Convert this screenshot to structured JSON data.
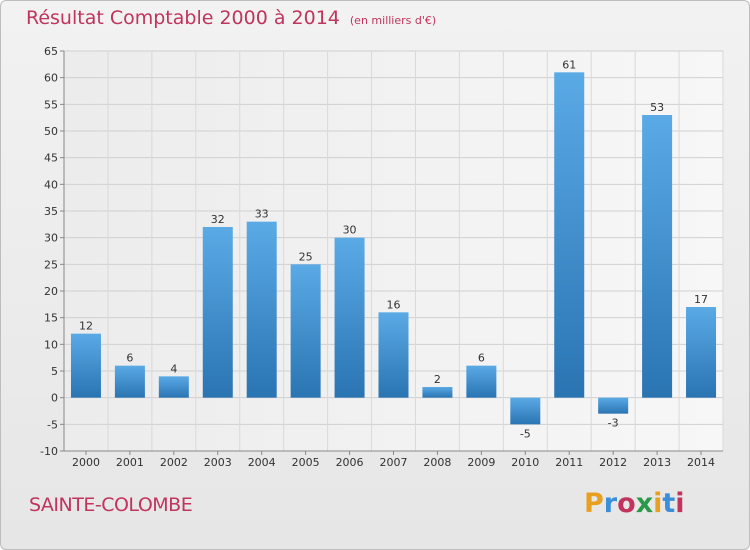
{
  "header": {
    "title": "Résultat Comptable 2000 à 2014",
    "subtitle": "(en milliers d'€)"
  },
  "footer": {
    "commune": "SAINTE-COLOMBE",
    "logo_text": "Proxiti"
  },
  "colors": {
    "title": "#c0345e",
    "bar_top": "#5aaae6",
    "bar_bottom": "#2a74b2",
    "logo": [
      "#e8a020",
      "#3a8fd8",
      "#c0345e",
      "#2a9a4a",
      "#e8a020",
      "#3a8fd8",
      "#c0345e"
    ]
  },
  "chart_data": {
    "type": "bar",
    "categories": [
      "2000",
      "2001",
      "2002",
      "2003",
      "2004",
      "2005",
      "2006",
      "2007",
      "2008",
      "2009",
      "2010",
      "2011",
      "2012",
      "2013",
      "2014"
    ],
    "values": [
      12,
      6,
      4,
      32,
      33,
      25,
      30,
      16,
      2,
      6,
      -5,
      61,
      -3,
      53,
      17
    ],
    "ylim": [
      -10,
      65
    ],
    "yticks": [
      -10,
      -5,
      0,
      5,
      10,
      15,
      20,
      25,
      30,
      35,
      40,
      45,
      50,
      55,
      60,
      65
    ],
    "grid": true,
    "xlabel": "",
    "ylabel": ""
  }
}
